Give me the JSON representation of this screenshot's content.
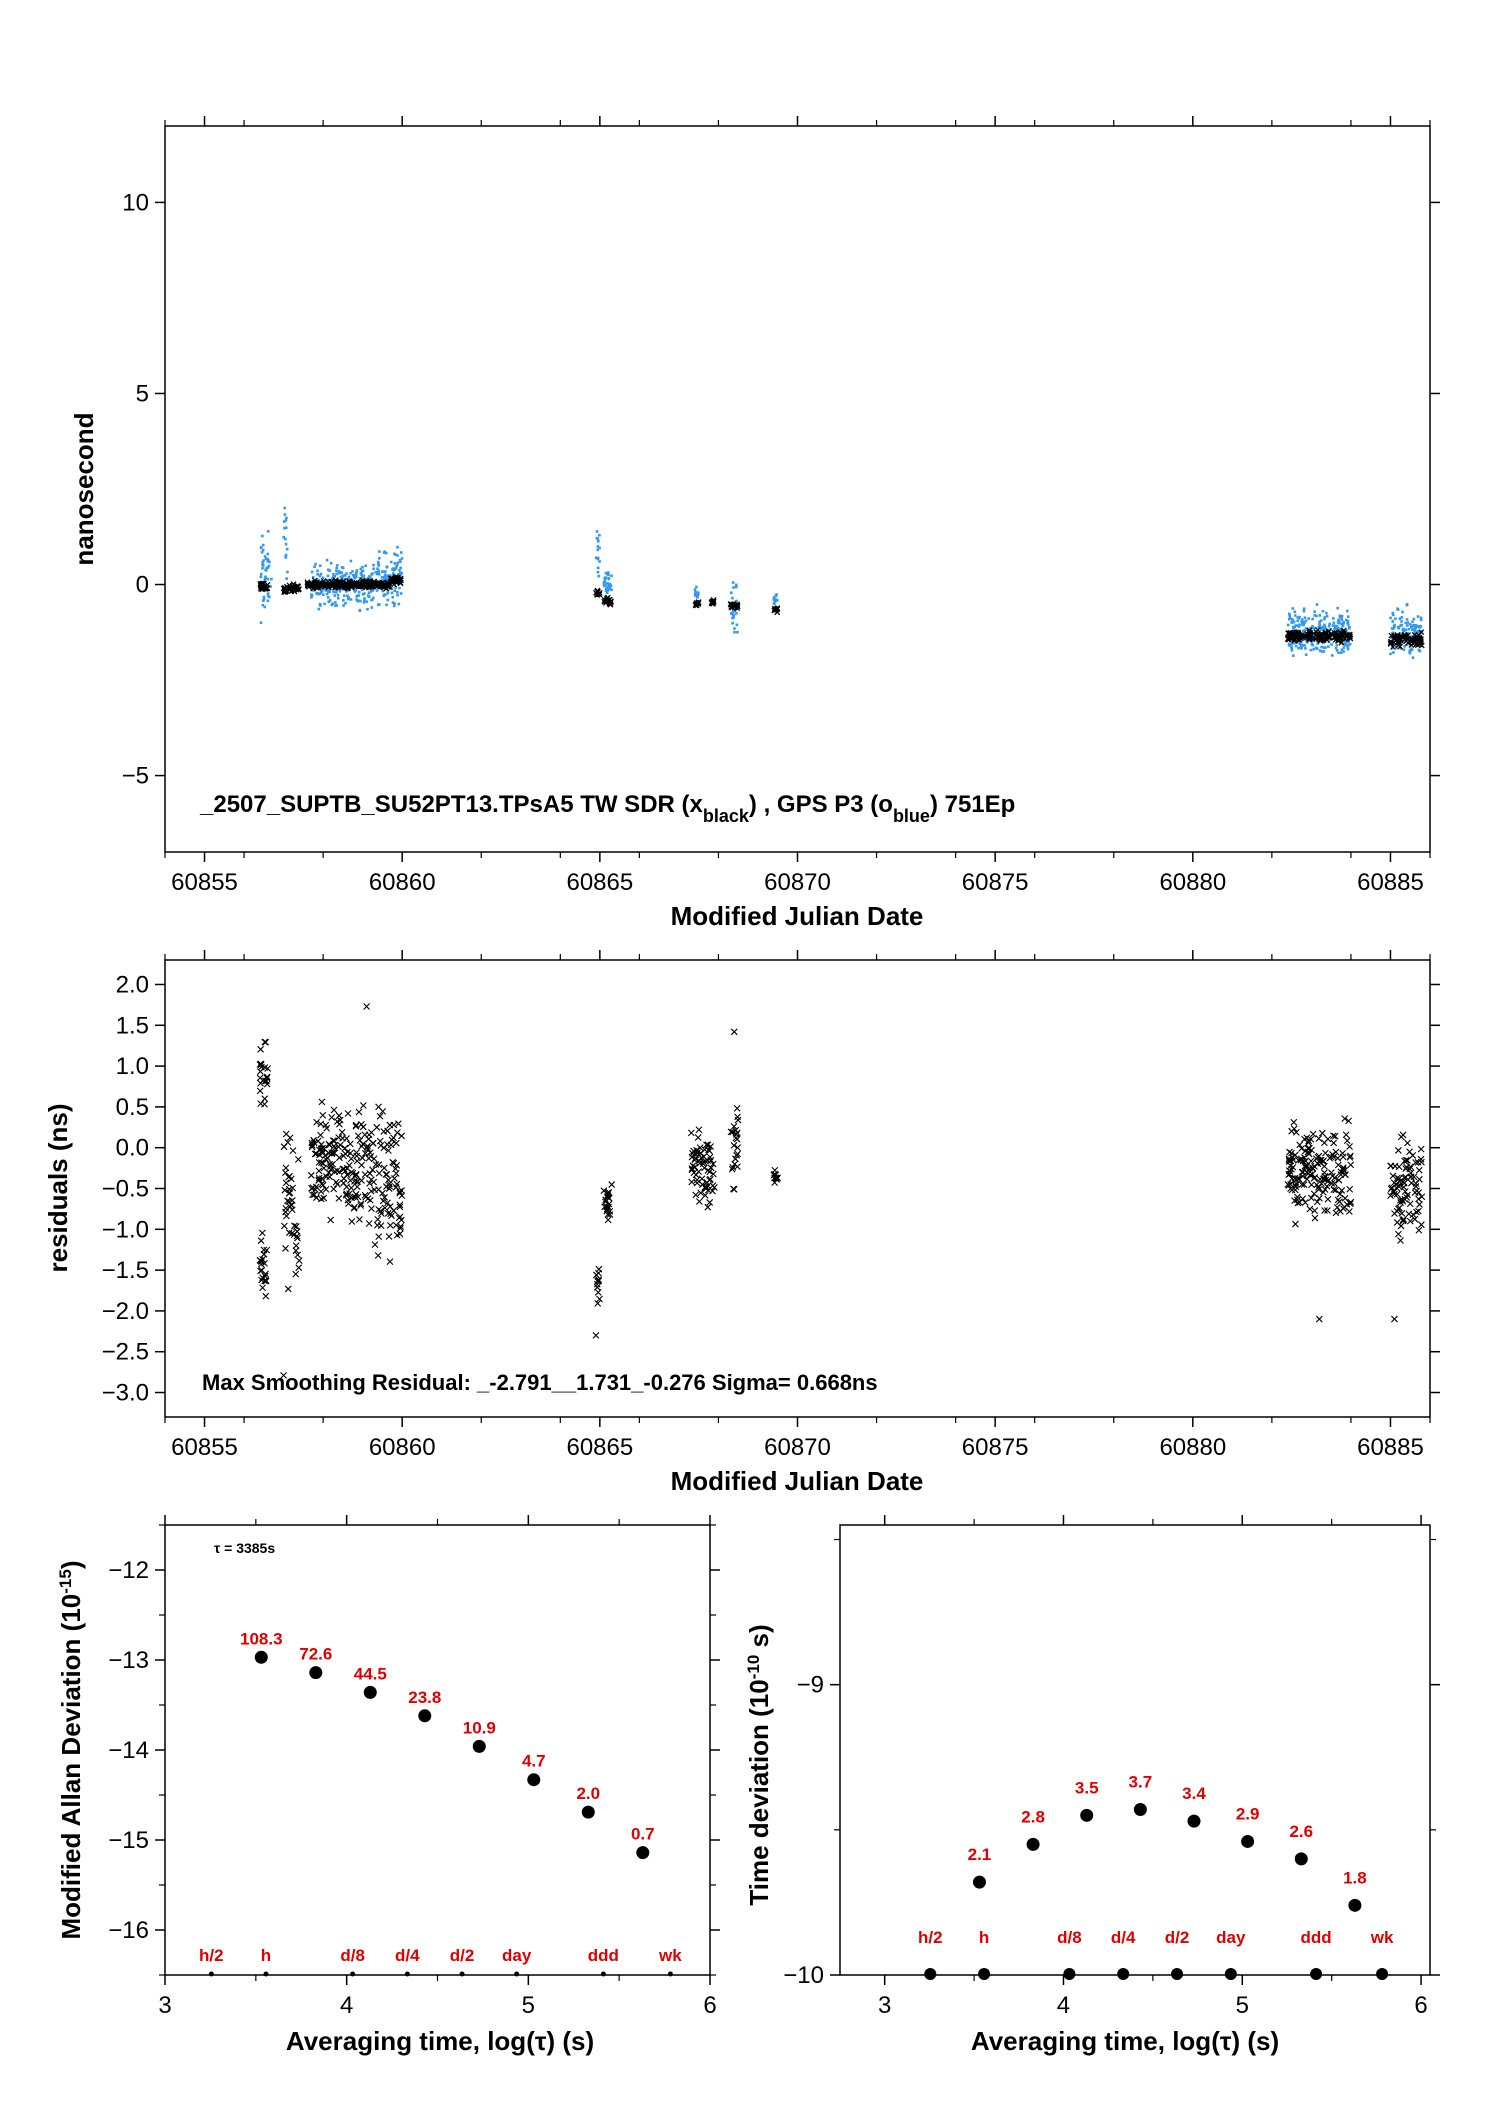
{
  "colors": {
    "black": "#000000",
    "blue": "#3399ee",
    "red": "#e00000"
  },
  "chart_data": [
    {
      "type": "scatter",
      "name": "timeseries",
      "xlabel": "Modified Julian Date",
      "ylabel": "nanosecond",
      "xlim": [
        60854,
        60886
      ],
      "ylim": [
        -7,
        12
      ],
      "xticks": [
        60855,
        60860,
        60865,
        60870,
        60875,
        60880,
        60885
      ],
      "yticks": [
        -5,
        0,
        5,
        10
      ],
      "annotation": {
        "prefix": "_2507_SUPTB_SU52PT13.TPsA5     TW SDR (x",
        "sub1": "black",
        "mid": ") ,  GPS P3 (o",
        "sub2": "blue",
        "suffix": ")  751Ep"
      },
      "clusters_black": [
        {
          "x0": 60856.4,
          "x1": 60856.6,
          "y": -0.05,
          "spread": 0.15
        },
        {
          "x0": 60857.0,
          "x1": 60857.4,
          "y": -0.1,
          "spread": 0.15
        },
        {
          "x0": 60857.6,
          "x1": 60858.8,
          "y": 0.0,
          "spread": 0.15
        },
        {
          "x0": 60858.8,
          "x1": 60859.7,
          "y": 0.0,
          "spread": 0.15
        },
        {
          "x0": 60859.7,
          "x1": 60860.0,
          "y": 0.1,
          "spread": 0.15
        },
        {
          "x0": 60864.9,
          "x1": 60865.0,
          "y": -0.2,
          "spread": 0.15
        },
        {
          "x0": 60865.1,
          "x1": 60865.3,
          "y": -0.45,
          "spread": 0.15
        },
        {
          "x0": 60867.4,
          "x1": 60867.5,
          "y": -0.5,
          "spread": 0.1
        },
        {
          "x0": 60867.8,
          "x1": 60867.9,
          "y": -0.45,
          "spread": 0.1
        },
        {
          "x0": 60868.3,
          "x1": 60868.5,
          "y": -0.55,
          "spread": 0.15
        },
        {
          "x0": 60869.4,
          "x1": 60869.5,
          "y": -0.65,
          "spread": 0.1
        },
        {
          "x0": 60882.4,
          "x1": 60884.0,
          "y": -1.35,
          "spread": 0.2
        },
        {
          "x0": 60885.0,
          "x1": 60885.8,
          "y": -1.45,
          "spread": 0.25
        }
      ],
      "clusters_blue": [
        {
          "x0": 60856.4,
          "x1": 60856.7,
          "y": 0.2,
          "spread": 1.6
        },
        {
          "x0": 60857.0,
          "x1": 60857.1,
          "y": 1.0,
          "spread": 1.5
        },
        {
          "x0": 60857.7,
          "x1": 60858.5,
          "y": 0.0,
          "spread": 0.8
        },
        {
          "x0": 60858.5,
          "x1": 60859.3,
          "y": 0.0,
          "spread": 0.8
        },
        {
          "x0": 60859.3,
          "x1": 60860.0,
          "y": 0.2,
          "spread": 1.0
        },
        {
          "x0": 60864.9,
          "x1": 60865.0,
          "y": 1.0,
          "spread": 1.1
        },
        {
          "x0": 60865.1,
          "x1": 60865.3,
          "y": 0.0,
          "spread": 0.4
        },
        {
          "x0": 60867.4,
          "x1": 60867.5,
          "y": -0.3,
          "spread": 0.5
        },
        {
          "x0": 60868.3,
          "x1": 60868.5,
          "y": -0.6,
          "spread": 0.9
        },
        {
          "x0": 60869.4,
          "x1": 60869.5,
          "y": -0.4,
          "spread": 0.2
        },
        {
          "x0": 60882.4,
          "x1": 60884.0,
          "y": -1.3,
          "spread": 0.9
        },
        {
          "x0": 60885.0,
          "x1": 60885.8,
          "y": -1.3,
          "spread": 0.9
        }
      ]
    },
    {
      "type": "scatter",
      "name": "residuals",
      "xlabel": "Modified Julian Date",
      "ylabel": "residuals (ns)",
      "xlim": [
        60854,
        60886
      ],
      "ylim": [
        -3.3,
        2.3
      ],
      "xticks": [
        60855,
        60860,
        60865,
        60870,
        60875,
        60880,
        60885
      ],
      "yticks": [
        -3.0,
        -2.5,
        -2.0,
        -1.5,
        -1.0,
        -0.5,
        0.0,
        0.5,
        1.0,
        1.5,
        2.0
      ],
      "ytick_labels": [
        "−3.0",
        "−2.5",
        "−2.0",
        "−1.5",
        "−1.0",
        "−0.5",
        "0.0",
        "0.5",
        "1.0",
        "1.5",
        "2.0"
      ],
      "annotation": "Max Smoothing Residual: _-2.791__1.731_-0.276  Sigma= 0.668ns",
      "max_residual_min": -2.791,
      "max_residual_max": 1.731,
      "mean_residual": -0.276,
      "sigma_ns": 0.668,
      "clusters": [
        {
          "x0": 60856.4,
          "x1": 60856.6,
          "y": 0.9,
          "spread": 0.5
        },
        {
          "x0": 60856.4,
          "x1": 60856.6,
          "y": -1.4,
          "spread": 0.7
        },
        {
          "x0": 60857.0,
          "x1": 60857.4,
          "y": -0.8,
          "spread": 1.3
        },
        {
          "x0": 60857.7,
          "x1": 60858.5,
          "y": -0.1,
          "spread": 0.9
        },
        {
          "x0": 60858.5,
          "x1": 60859.3,
          "y": -0.2,
          "spread": 1.0
        },
        {
          "x0": 60859.3,
          "x1": 60860.0,
          "y": -0.4,
          "spread": 1.3
        },
        {
          "x0": 60864.9,
          "x1": 60865.0,
          "y": -1.7,
          "spread": 0.6
        },
        {
          "x0": 60865.1,
          "x1": 60865.3,
          "y": -0.7,
          "spread": 0.4
        },
        {
          "x0": 60867.3,
          "x1": 60867.9,
          "y": -0.3,
          "spread": 0.6
        },
        {
          "x0": 60868.3,
          "x1": 60868.5,
          "y": 0.0,
          "spread": 0.8
        },
        {
          "x0": 60869.4,
          "x1": 60869.5,
          "y": -0.35,
          "spread": 0.1
        },
        {
          "x0": 60882.4,
          "x1": 60884.0,
          "y": -0.3,
          "spread": 0.8
        },
        {
          "x0": 60885.0,
          "x1": 60885.8,
          "y": -0.5,
          "spread": 0.9
        }
      ],
      "extreme_points": [
        {
          "x": 60859.1,
          "y": 1.73
        },
        {
          "x": 60868.4,
          "y": 1.42
        },
        {
          "x": 60857.0,
          "y": -2.79
        },
        {
          "x": 60864.9,
          "y": -2.3
        },
        {
          "x": 60883.2,
          "y": -2.1
        },
        {
          "x": 60885.1,
          "y": -2.1
        }
      ]
    },
    {
      "type": "scatter",
      "name": "mdev",
      "xlabel": "Averaging time, log(τ) (s)",
      "ylabel_main": "Modified Allan Deviation (10",
      "ylabel_sup": "-15",
      "ylabel_end": ")",
      "xlim": [
        3,
        6
      ],
      "ylim": [
        -16.5,
        -11.5
      ],
      "xticks": [
        3,
        4,
        5,
        6
      ],
      "yticks": [
        -16,
        -15,
        -14,
        -13,
        -12
      ],
      "ytick_labels": [
        "−16",
        "−15",
        "−14",
        "−13",
        "−12"
      ],
      "tau_note": "τ = 3385s",
      "points": [
        {
          "x": 3.53,
          "y": -12.97,
          "label": "108.3"
        },
        {
          "x": 3.83,
          "y": -13.14,
          "label": "72.6"
        },
        {
          "x": 4.13,
          "y": -13.36,
          "label": "44.5"
        },
        {
          "x": 4.43,
          "y": -13.62,
          "label": "23.8"
        },
        {
          "x": 4.73,
          "y": -13.96,
          "label": "10.9"
        },
        {
          "x": 5.03,
          "y": -14.33,
          "label": "4.7"
        },
        {
          "x": 5.33,
          "y": -14.69,
          "label": "2.0"
        },
        {
          "x": 5.63,
          "y": -15.14,
          "label": "0.7"
        }
      ],
      "markers": [
        {
          "x": 3.255,
          "label": "h/2"
        },
        {
          "x": 3.556,
          "label": "h"
        },
        {
          "x": 4.033,
          "label": "d/8"
        },
        {
          "x": 4.334,
          "label": "d/4"
        },
        {
          "x": 4.635,
          "label": "d/2"
        },
        {
          "x": 4.936,
          "label": "day"
        },
        {
          "x": 5.413,
          "label": "ddd"
        },
        {
          "x": 5.782,
          "label": "wk"
        }
      ]
    },
    {
      "type": "scatter",
      "name": "tdev",
      "xlabel": "Averaging time, log(τ) (s)",
      "ylabel_main": "Time deviation (10",
      "ylabel_sup": "-10",
      "ylabel_end": " s)",
      "xlim": [
        2.75,
        6.05
      ],
      "ylim": [
        -10.0,
        -8.45
      ],
      "xticks": [
        3,
        4,
        5,
        6
      ],
      "yticks": [
        -10,
        -9
      ],
      "ytick_labels": [
        "−10",
        "−9"
      ],
      "points": [
        {
          "x": 3.53,
          "y": -9.68,
          "label": "2.1"
        },
        {
          "x": 3.83,
          "y": -9.55,
          "label": "2.8"
        },
        {
          "x": 4.13,
          "y": -9.45,
          "label": "3.5"
        },
        {
          "x": 4.43,
          "y": -9.43,
          "label": "3.7"
        },
        {
          "x": 4.73,
          "y": -9.47,
          "label": "3.4"
        },
        {
          "x": 5.03,
          "y": -9.54,
          "label": "2.9"
        },
        {
          "x": 5.33,
          "y": -9.6,
          "label": "2.6"
        },
        {
          "x": 5.63,
          "y": -9.76,
          "label": "1.8"
        }
      ],
      "markers": [
        {
          "x": 3.255,
          "label": "h/2"
        },
        {
          "x": 3.556,
          "label": "h"
        },
        {
          "x": 4.033,
          "label": "d/8"
        },
        {
          "x": 4.334,
          "label": "d/4"
        },
        {
          "x": 4.635,
          "label": "d/2"
        },
        {
          "x": 4.936,
          "label": "day"
        },
        {
          "x": 5.413,
          "label": "ddd"
        },
        {
          "x": 5.782,
          "label": "wk"
        }
      ]
    }
  ]
}
